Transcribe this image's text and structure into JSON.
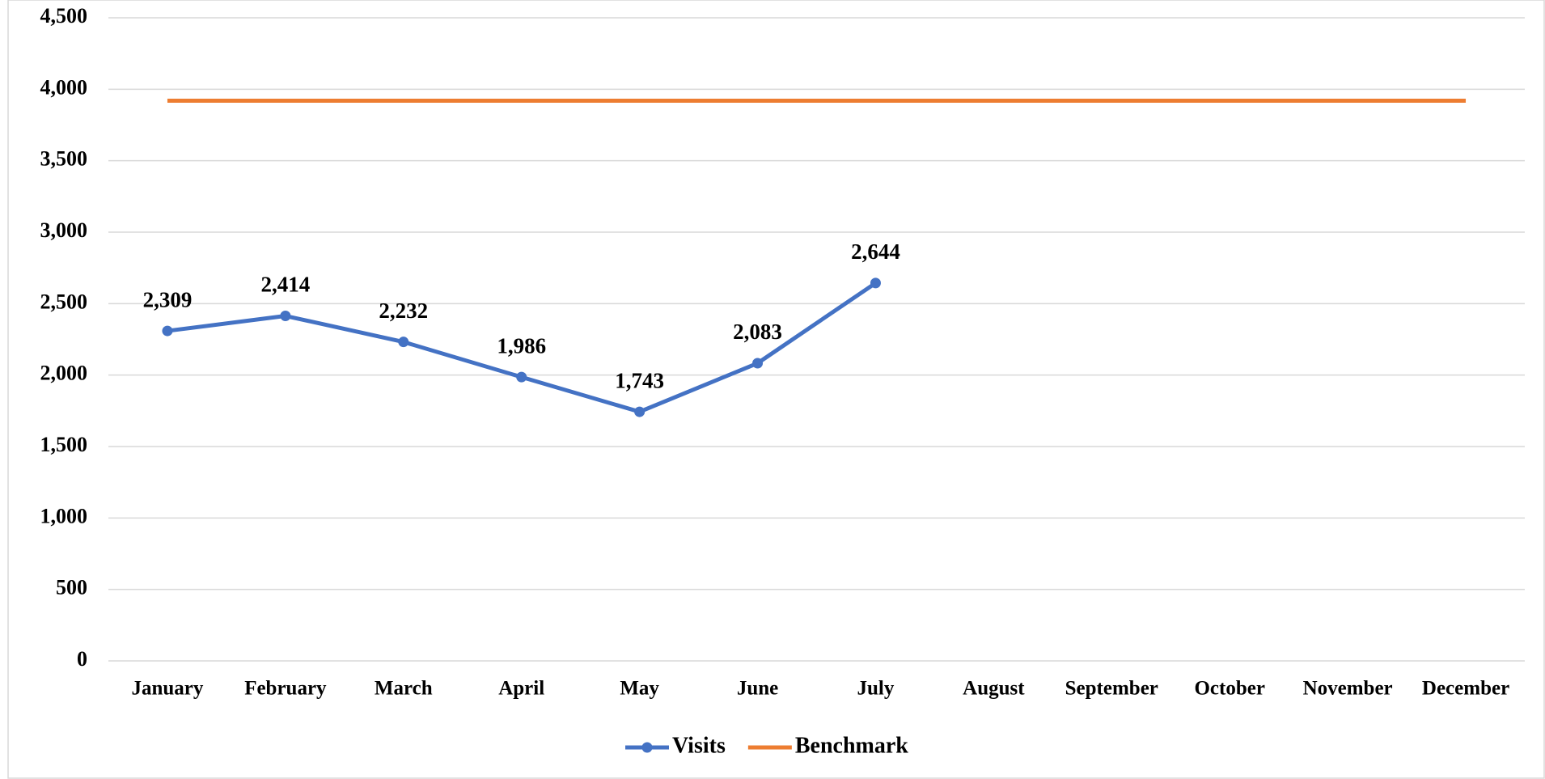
{
  "chart_data": {
    "type": "line",
    "categories": [
      "January",
      "February",
      "March",
      "April",
      "May",
      "June",
      "July",
      "August",
      "September",
      "October",
      "November",
      "December"
    ],
    "series": [
      {
        "name": "Visits",
        "color": "#4472c4",
        "marker": true,
        "values": [
          2309,
          2414,
          2232,
          1986,
          1743,
          2083,
          2644,
          null,
          null,
          null,
          null,
          null
        ],
        "value_labels": [
          "2,309",
          "2,414",
          "2,232",
          "1,986",
          "1,743",
          "2,083",
          "2,644",
          null,
          null,
          null,
          null,
          null
        ]
      },
      {
        "name": "Benchmark",
        "color": "#ed7d31",
        "marker": false,
        "values": [
          3920,
          3920,
          3920,
          3920,
          3920,
          3920,
          3920,
          3920,
          3920,
          3920,
          3920,
          3920
        ]
      }
    ],
    "ylim": [
      0,
      4500
    ],
    "yticks": [
      0,
      500,
      {
        "value": 1000,
        "label": "1,000"
      },
      {
        "value": 1500,
        "label": "1,500"
      },
      {
        "value": 2000,
        "label": "2,000"
      },
      {
        "value": 2500,
        "label": "2,500"
      },
      {
        "value": 3000,
        "label": "3,000"
      },
      {
        "value": 3500,
        "label": "3,500"
      },
      {
        "value": 4000,
        "label": "4,000"
      },
      {
        "value": 4500,
        "label": "4,500"
      }
    ],
    "grid": true,
    "legend": "bottom"
  }
}
